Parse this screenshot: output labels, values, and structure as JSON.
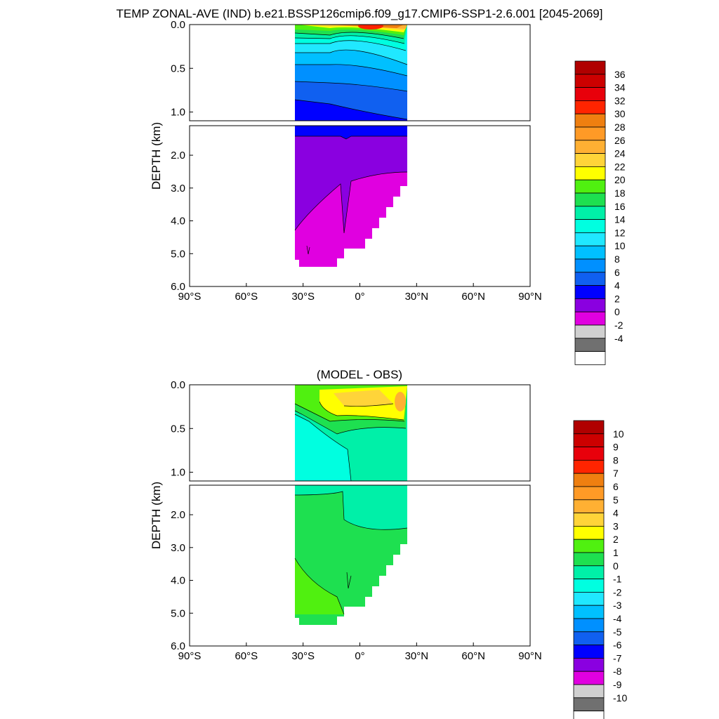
{
  "figure": {
    "title": "TEMP ZONAL-AVE (IND) b.e21.BSSP126cmip6.f09_g17.CMIP6-SSP1-2.6.001 [2045-2069]"
  },
  "chart_data": [
    {
      "type": "contour",
      "title": "",
      "xlabel": "",
      "ylabel": "DEPTH (km)",
      "x_ticks": [
        "90°S",
        "60°S",
        "30°S",
        "0°",
        "30°N",
        "60°N",
        "90°N"
      ],
      "y_ticks_upper": [
        "0.0",
        "0.5",
        "1.0"
      ],
      "y_ticks_lower": [
        "2.0",
        "3.0",
        "4.0",
        "5.0",
        "6.0"
      ],
      "xlim": [
        -90,
        90
      ],
      "ylim_km": [
        0,
        6
      ],
      "data_lat_range": [
        -34,
        25
      ],
      "colorbar": {
        "labels": [
          "36",
          "34",
          "32",
          "30",
          "28",
          "26",
          "24",
          "22",
          "20",
          "18",
          "16",
          "14",
          "12",
          "10",
          "8",
          "6",
          "4",
          "2",
          "0",
          "-2",
          "-4"
        ],
        "colors": [
          "#b00000",
          "#cc0000",
          "#e8000b",
          "#ff2400",
          "#ef7f10",
          "#ff9a26",
          "#ffb033",
          "#ffd439",
          "#ffff00",
          "#50f010",
          "#1ee050",
          "#00f0a8",
          "#00ffe0",
          "#20e8ff",
          "#00c0ff",
          "#0090ff",
          "#1060f0",
          "#0000ff",
          "#8a00e0",
          "#e000e0",
          "#d0d0d0",
          "#707070",
          "#ffffff"
        ]
      },
      "regions": [
        {
          "value": "> 28",
          "lat": [
            -10,
            15
          ],
          "depth_km": [
            0,
            0.05
          ]
        },
        {
          "value": "20 to 28",
          "lat": [
            -34,
            25
          ],
          "depth_km": [
            0,
            0.15
          ]
        },
        {
          "value": "10 to 20",
          "lat": [
            -34,
            25
          ],
          "depth_km": [
            0.15,
            0.5
          ]
        },
        {
          "value": "6 to 10",
          "lat": [
            -34,
            25
          ],
          "depth_km": [
            0.5,
            1.1
          ]
        },
        {
          "value": "4 to 6",
          "lat": [
            -34,
            25
          ],
          "depth_km": [
            0.9,
            1.4
          ]
        },
        {
          "value": "2 to 4",
          "lat": [
            -34,
            25
          ],
          "depth_km": [
            1.4,
            4.3
          ]
        },
        {
          "value": "0 to 2",
          "lat": [
            -34,
            25
          ],
          "depth_km": [
            2.5,
            5.4
          ]
        }
      ]
    },
    {
      "type": "contour",
      "title": "(MODEL - OBS)",
      "xlabel": "",
      "ylabel": "DEPTH (km)",
      "x_ticks": [
        "90°S",
        "60°S",
        "30°S",
        "0°",
        "30°N",
        "60°N",
        "90°N"
      ],
      "y_ticks_upper": [
        "0.0",
        "0.5",
        "1.0"
      ],
      "y_ticks_lower": [
        "2.0",
        "3.0",
        "4.0",
        "5.0",
        "6.0"
      ],
      "xlim": [
        -90,
        90
      ],
      "ylim_km": [
        0,
        6
      ],
      "data_lat_range": [
        -34,
        25
      ],
      "colorbar": {
        "labels": [
          "10",
          "9",
          "8",
          "7",
          "6",
          "5",
          "4",
          "3",
          "2",
          "1",
          "0",
          "-1",
          "-2",
          "-3",
          "-4",
          "-5",
          "-6",
          "-7",
          "-8",
          "-9",
          "-10"
        ],
        "colors": [
          "#b00000",
          "#cc0000",
          "#e8000b",
          "#ff2400",
          "#ef7f10",
          "#ff9a26",
          "#ffb033",
          "#ffd439",
          "#ffff00",
          "#50f010",
          "#1ee050",
          "#00f0a8",
          "#00ffe0",
          "#20e8ff",
          "#00c0ff",
          "#0090ff",
          "#1060f0",
          "#0000ff",
          "#8a00e0",
          "#e000e0",
          "#d0d0d0",
          "#707070",
          "#ffffff"
        ]
      },
      "regions": [
        {
          "value": "2 to 5",
          "lat": [
            -20,
            25
          ],
          "depth_km": [
            0,
            0.4
          ]
        },
        {
          "value": "1 to 2",
          "lat": [
            -34,
            25
          ],
          "depth_km": [
            0,
            0.6
          ]
        },
        {
          "value": "-1 to -2",
          "lat": [
            -34,
            25
          ],
          "depth_km": [
            0.5,
            1.8
          ]
        },
        {
          "value": "-1 to 0",
          "lat": [
            -30,
            25
          ],
          "depth_km": [
            1.5,
            3.0
          ]
        },
        {
          "value": "0 to 1",
          "lat": [
            -34,
            25
          ],
          "depth_km": [
            1.2,
            5.4
          ]
        },
        {
          "value": "1 to 2",
          "lat": [
            -34,
            -15
          ],
          "depth_km": [
            3.3,
            5.4
          ]
        }
      ]
    }
  ]
}
